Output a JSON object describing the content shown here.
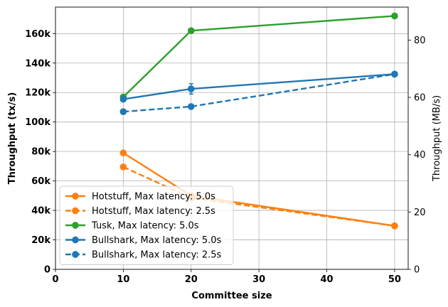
{
  "chart_data": {
    "type": "line",
    "title": "",
    "xlabel": "Committee size",
    "ylabel": "Throughput (tx/s)",
    "ylabel_right": "Throughput (MB/s)",
    "xlim": [
      0,
      52
    ],
    "ylim": [
      0,
      178000
    ],
    "ylim_right": [
      0,
      91.5
    ],
    "x_ticks": [
      0,
      10,
      20,
      30,
      40,
      50
    ],
    "x_tick_labels": [
      "0",
      "10",
      "20",
      "30",
      "40",
      "50"
    ],
    "y_ticks": [
      0,
      20000,
      40000,
      60000,
      80000,
      100000,
      120000,
      140000,
      160000
    ],
    "y_tick_labels": [
      "0",
      "20k",
      "40k",
      "60k",
      "80k",
      "100k",
      "120k",
      "140k",
      "160k"
    ],
    "y_right_ticks": [
      0,
      20,
      40,
      60,
      80
    ],
    "y_right_tick_labels": [
      "0",
      "20",
      "40",
      "60",
      "80"
    ],
    "grid": true,
    "legend_position": "lower-left",
    "series": [
      {
        "name": "Hotstuff, Max latency: 5.0s",
        "color": "#ff7f0e",
        "dash": "solid",
        "x": [
          10,
          20,
          50
        ],
        "y": [
          79000,
          50000,
          29500
        ],
        "err": [
          0,
          0,
          0
        ]
      },
      {
        "name": "Hotstuff, Max latency: 2.5s",
        "color": "#ff7f0e",
        "dash": "dashed",
        "x": [
          10,
          20,
          50
        ],
        "y": [
          69500,
          48500,
          29500
        ],
        "err": [
          0,
          0,
          0
        ]
      },
      {
        "name": "Tusk, Max latency: 5.0s",
        "color": "#2ca02c",
        "dash": "solid",
        "x": [
          10,
          20,
          50
        ],
        "y": [
          117000,
          162000,
          172000
        ],
        "err": [
          0,
          0,
          0
        ]
      },
      {
        "name": "Bullshark, Max latency: 5.0s",
        "color": "#1f77b4",
        "dash": "solid",
        "x": [
          10,
          20,
          50
        ],
        "y": [
          115500,
          122500,
          132500
        ],
        "err": [
          0,
          3500,
          0
        ]
      },
      {
        "name": "Bullshark, Max latency: 2.5s",
        "color": "#1f77b4",
        "dash": "dashed",
        "x": [
          10,
          20,
          50
        ],
        "y": [
          107000,
          110500,
          132500
        ],
        "err": [
          0,
          0,
          0
        ]
      }
    ]
  }
}
